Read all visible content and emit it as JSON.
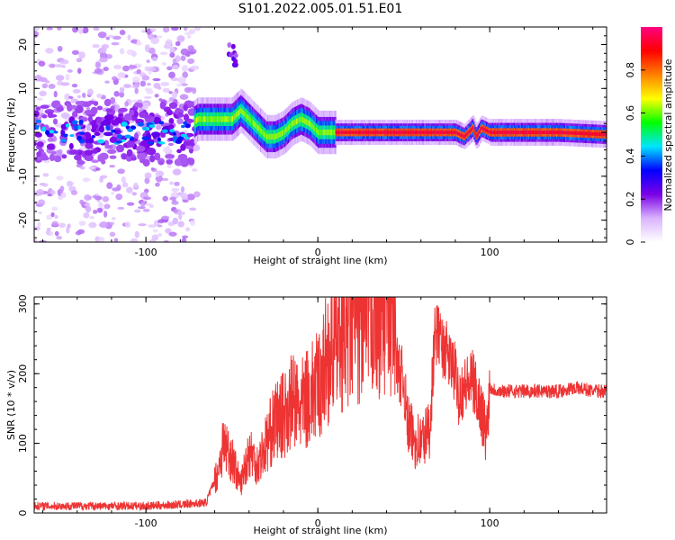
{
  "title": "S101.2022.005.01.51.E01",
  "chart_data": [
    {
      "type": "heatmap",
      "xlabel": "Height of straight line (km)",
      "ylabel": "Frequency (Hz)",
      "xlim": [
        -165,
        168
      ],
      "ylim": [
        -25,
        24
      ],
      "x_ticks": [
        -100,
        0,
        100
      ],
      "y_ticks": [
        -20,
        -10,
        0,
        10,
        20
      ],
      "colorbar": {
        "label": "Normalized spectral amplitude",
        "range": [
          0,
          1
        ],
        "ticks": [
          0.0,
          0.2,
          0.4,
          0.6,
          0.8
        ],
        "colors": [
          "#ffffff",
          "#d9b3ff",
          "#7b00e6",
          "#0000ff",
          "#00e5ff",
          "#00ff00",
          "#ffff00",
          "#ff8000",
          "#ff0000",
          "#ff0080"
        ]
      },
      "trace": {
        "x": [
          -165,
          -140,
          -120,
          -100,
          -80,
          -70,
          -60,
          -50,
          -45,
          -40,
          -30,
          -25,
          -20,
          -15,
          -10,
          -5,
          0,
          5,
          10,
          20,
          40,
          60,
          80,
          85,
          90,
          92,
          95,
          100,
          120,
          140,
          168
        ],
        "y": [
          0,
          0,
          0,
          0,
          0,
          3,
          3,
          3,
          5,
          3,
          -1,
          -1,
          0,
          2,
          3,
          2,
          0,
          0,
          0,
          0,
          0,
          0,
          0,
          -1,
          1,
          -1,
          1,
          0,
          0,
          0,
          -0.5
        ]
      }
    },
    {
      "type": "line",
      "xlabel": "Height of straight line (km)",
      "ylabel": "SNR (10 * v/v)",
      "xlim": [
        -165,
        168
      ],
      "ylim": [
        0,
        310
      ],
      "x_ticks": [
        -100,
        0,
        100
      ],
      "y_ticks": [
        0,
        100,
        200,
        300
      ],
      "line_color": "#ee3333",
      "series": [
        {
          "x": [
            -165,
            -140,
            -120,
            -100,
            -80,
            -65,
            -58,
            -55,
            -50,
            -45,
            -40,
            -35,
            -30,
            -25,
            -20,
            -15,
            -10,
            -5,
            0,
            5,
            10,
            15,
            20,
            25,
            30,
            35,
            40,
            45,
            46,
            47,
            50,
            52,
            55,
            60,
            65,
            68,
            70,
            72,
            75,
            78,
            80,
            82,
            85,
            90,
            95,
            98,
            100,
            105,
            110,
            120,
            130,
            140,
            150,
            160,
            168
          ],
          "y": [
            10,
            10,
            10,
            10,
            12,
            15,
            60,
            100,
            80,
            40,
            90,
            70,
            100,
            130,
            140,
            160,
            150,
            170,
            180,
            220,
            250,
            265,
            275,
            280,
            290,
            295,
            300,
            290,
            210,
            205,
            190,
            130,
            110,
            100,
            120,
            250,
            260,
            240,
            230,
            210,
            200,
            170,
            180,
            190,
            150,
            110,
            180,
            175,
            175,
            175,
            175,
            175,
            180,
            175,
            175
          ]
        }
      ]
    }
  ]
}
